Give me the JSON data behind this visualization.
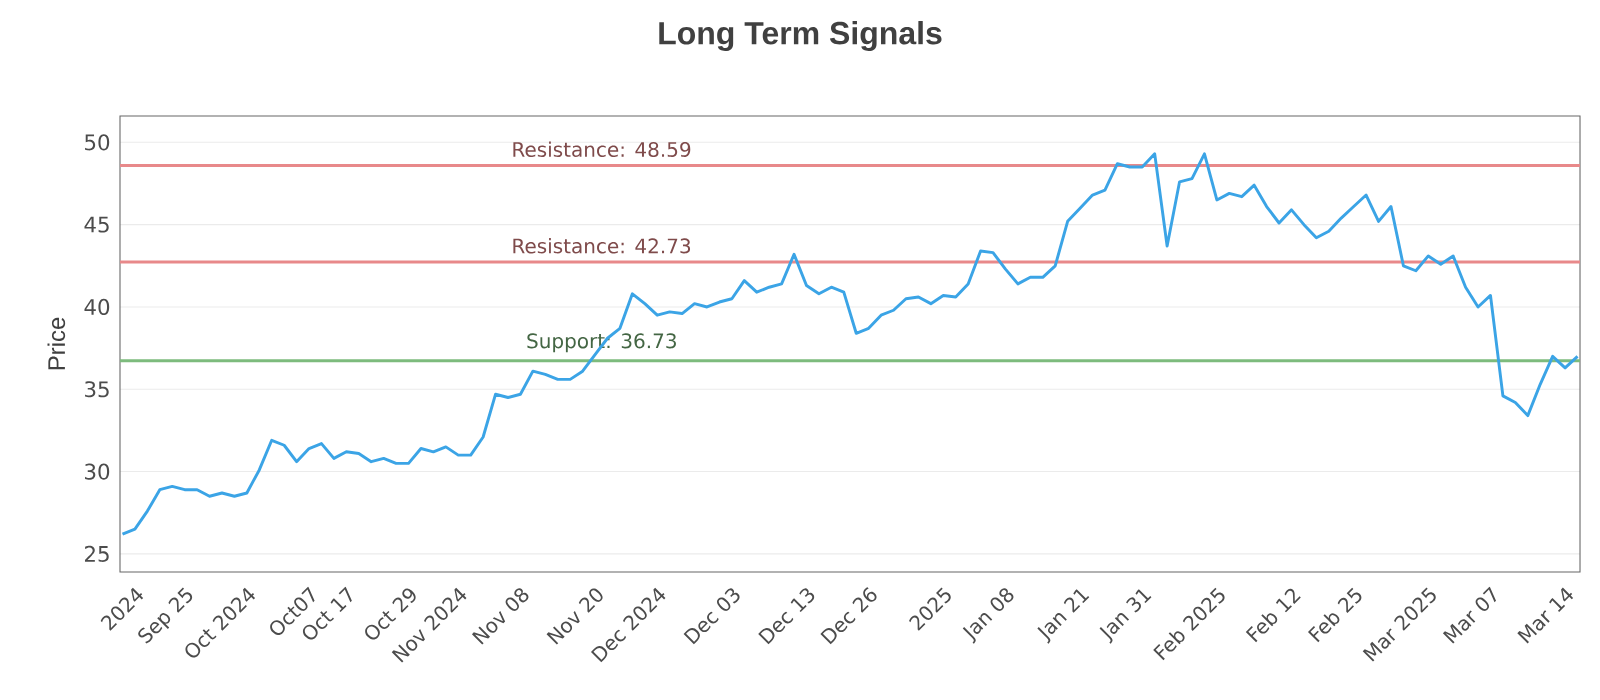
{
  "chart_data": {
    "type": "line",
    "title": "Long Term Signals",
    "ylabel": "Price",
    "categories": [
      null,
      "2024",
      null,
      null,
      null,
      "Sep 25",
      null,
      null,
      null,
      null,
      "Oct 2024",
      null,
      null,
      null,
      null,
      "Oct07",
      null,
      null,
      "Oct 17",
      null,
      null,
      null,
      null,
      "Oct 29",
      null,
      null,
      null,
      "Nov 2024",
      null,
      null,
      null,
      null,
      "Nov 08",
      null,
      null,
      null,
      null,
      null,
      "Nov 20",
      null,
      null,
      null,
      null,
      "Dec 2024",
      null,
      null,
      null,
      null,
      null,
      "Dec 03",
      null,
      null,
      null,
      null,
      null,
      "Dec 13",
      null,
      null,
      null,
      null,
      "Dec 26",
      null,
      null,
      null,
      null,
      null,
      "2025",
      null,
      null,
      null,
      null,
      "Jan 08",
      null,
      null,
      null,
      null,
      null,
      "Jan 21",
      null,
      null,
      null,
      null,
      "Jan 31",
      null,
      null,
      null,
      null,
      null,
      "Feb 2025",
      null,
      null,
      null,
      null,
      null,
      "Feb 12",
      null,
      null,
      null,
      null,
      "Feb 25",
      null,
      null,
      null,
      null,
      null,
      "Mar 2025",
      null,
      null,
      null,
      null,
      "Mar 07",
      null,
      null,
      null,
      null,
      null,
      "Mar 14",
      null
    ],
    "ylim": [
      23.9,
      51.6
    ],
    "yticks": [
      25,
      30,
      35,
      40,
      45,
      50
    ],
    "grid": "y",
    "legend": false,
    "marker": "none",
    "line_style": "solid",
    "series": [
      {
        "color": "#3ba4e6",
        "values": [
          26.2,
          26.5,
          27.6,
          28.9,
          29.1,
          28.9,
          28.9,
          28.5,
          28.7,
          28.5,
          28.7,
          30.1,
          31.9,
          31.6,
          30.6,
          31.4,
          31.7,
          30.8,
          31.2,
          31.1,
          30.6,
          30.8,
          30.5,
          30.5,
          31.4,
          31.2,
          31.5,
          31.0,
          31.0,
          32.1,
          34.7,
          34.5,
          34.7,
          36.1,
          35.9,
          35.6,
          35.6,
          36.1,
          37.1,
          38.1,
          38.7,
          40.8,
          40.2,
          39.5,
          39.7,
          39.6,
          40.2,
          40.0,
          40.3,
          40.5,
          41.6,
          40.9,
          41.2,
          41.4,
          43.2,
          41.3,
          40.8,
          41.2,
          40.9,
          38.4,
          38.7,
          39.5,
          39.8,
          40.5,
          40.6,
          40.2,
          40.7,
          40.6,
          41.4,
          43.4,
          43.3,
          42.3,
          41.4,
          41.8,
          41.8,
          42.5,
          45.2,
          46.0,
          46.8,
          47.1,
          48.7,
          48.5,
          48.5,
          49.3,
          43.7,
          47.6,
          47.8,
          49.3,
          46.5,
          46.9,
          46.7,
          47.4,
          46.1,
          45.1,
          45.9,
          45.0,
          44.2,
          44.6,
          45.4,
          46.1,
          46.8,
          45.2,
          46.1,
          42.5,
          42.2,
          43.1,
          42.6,
          43.1,
          41.2,
          40.0,
          40.7,
          34.6,
          34.2,
          33.4,
          35.3,
          37.0,
          36.3,
          37.0
        ]
      }
    ],
    "ref_lines": [
      {
        "axis": "y",
        "value": 48.59,
        "label": "Resistance: 48.59",
        "color": "#e8898a"
      },
      {
        "axis": "y",
        "value": 42.73,
        "label": "Resistance: 42.73",
        "color": "#e8898a"
      },
      {
        "axis": "y",
        "value": 36.73,
        "label": "Support: 36.73",
        "color": "#7dbb7d"
      }
    ]
  }
}
